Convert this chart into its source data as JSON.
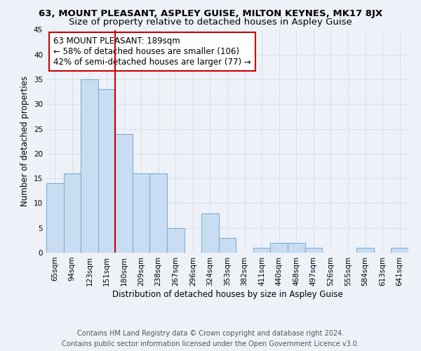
{
  "title": "63, MOUNT PLEASANT, ASPLEY GUISE, MILTON KEYNES, MK17 8JX",
  "subtitle": "Size of property relative to detached houses in Aspley Guise",
  "xlabel": "Distribution of detached houses by size in Aspley Guise",
  "ylabel": "Number of detached properties",
  "bin_labels": [
    "65sqm",
    "94sqm",
    "123sqm",
    "151sqm",
    "180sqm",
    "209sqm",
    "238sqm",
    "267sqm",
    "296sqm",
    "324sqm",
    "353sqm",
    "382sqm",
    "411sqm",
    "440sqm",
    "468sqm",
    "497sqm",
    "526sqm",
    "555sqm",
    "584sqm",
    "613sqm",
    "641sqm"
  ],
  "bar_values": [
    14,
    16,
    35,
    33,
    24,
    16,
    16,
    5,
    0,
    8,
    3,
    0,
    1,
    2,
    2,
    1,
    0,
    0,
    1,
    0,
    1
  ],
  "bar_color": "#c9ddf2",
  "bar_edge_color": "#7baed4",
  "ref_line_x": 4,
  "ref_line_color": "#cc0000",
  "annotation_line1": "63 MOUNT PLEASANT: 189sqm",
  "annotation_line2": "← 58% of detached houses are smaller (106)",
  "annotation_line3": "42% of semi-detached houses are larger (77) →",
  "annotation_box_color": "#ffffff",
  "annotation_box_edge": "#cc0000",
  "ylim": [
    0,
    45
  ],
  "yticks": [
    0,
    5,
    10,
    15,
    20,
    25,
    30,
    35,
    40,
    45
  ],
  "footer_line1": "Contains HM Land Registry data © Crown copyright and database right 2024.",
  "footer_line2": "Contains public sector information licensed under the Open Government Licence v3.0.",
  "bg_color": "#eef2f8",
  "grid_color": "#d8e0ec",
  "title_fontsize": 9.5,
  "subtitle_fontsize": 9.5,
  "axis_label_fontsize": 8.5,
  "tick_fontsize": 7.5,
  "annotation_fontsize": 8.5,
  "footer_fontsize": 7.0
}
